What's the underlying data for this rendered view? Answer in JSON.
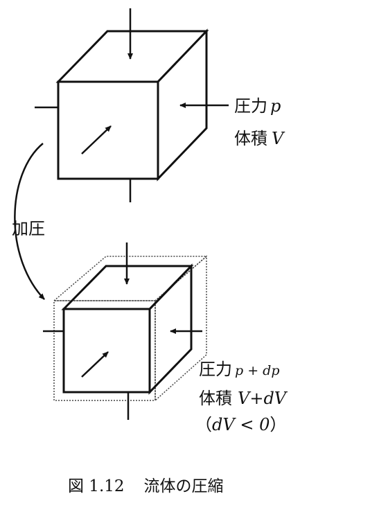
{
  "labels": {
    "top_pressure": {
      "kanji": "圧力",
      "var": "p"
    },
    "top_volume": {
      "kanji": "体積",
      "var": "V"
    },
    "process": "加圧",
    "bottom_pressure": {
      "kanji": "圧力",
      "var": "p + dp"
    },
    "bottom_volume": {
      "kanji": "体積",
      "var": "V+dV"
    },
    "bottom_condition": {
      "open": "（",
      "expr": "dV < 0",
      "close": "）"
    }
  },
  "caption": {
    "number": "図 1.12",
    "title": "流体の圧縮"
  }
}
